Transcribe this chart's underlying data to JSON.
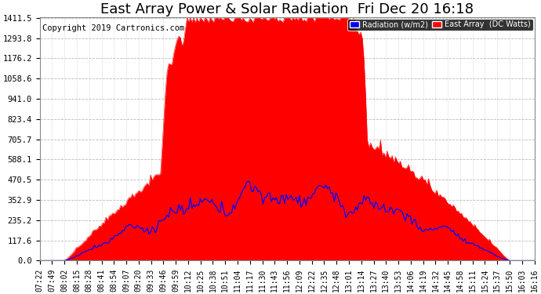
{
  "title": "East Array Power & Solar Radiation  Fri Dec 20 16:18",
  "copyright": "Copyright 2019 Cartronics.com",
  "legend_labels": [
    "Radiation (w/m2)",
    "East Array  (DC Watts)"
  ],
  "legend_colors": [
    "blue",
    "red"
  ],
  "yticks": [
    0.0,
    117.6,
    235.2,
    352.9,
    470.5,
    588.1,
    705.7,
    823.4,
    941.0,
    1058.6,
    1176.2,
    1293.8,
    1411.5
  ],
  "ymax": 1411.5,
  "ymin": 0.0,
  "background_color": "#ffffff",
  "plot_bg_color": "#ffffff",
  "grid_color": "#aaaaaa",
  "red_color": "#ff0000",
  "blue_color": "#0000ff",
  "title_fontsize": 13,
  "copyright_fontsize": 7.5,
  "tick_fontsize": 7.5,
  "time_labels": [
    "07:22",
    "07:49",
    "08:02",
    "08:15",
    "08:28",
    "08:41",
    "08:54",
    "09:07",
    "09:20",
    "09:33",
    "09:46",
    "09:59",
    "10:12",
    "10:25",
    "10:38",
    "10:51",
    "11:04",
    "11:17",
    "11:30",
    "11:43",
    "11:56",
    "12:09",
    "12:22",
    "12:35",
    "12:48",
    "13:01",
    "13:14",
    "13:27",
    "13:40",
    "13:53",
    "14:06",
    "14:19",
    "14:32",
    "14:45",
    "14:58",
    "15:11",
    "15:24",
    "15:37",
    "15:50",
    "16:03",
    "16:16"
  ]
}
